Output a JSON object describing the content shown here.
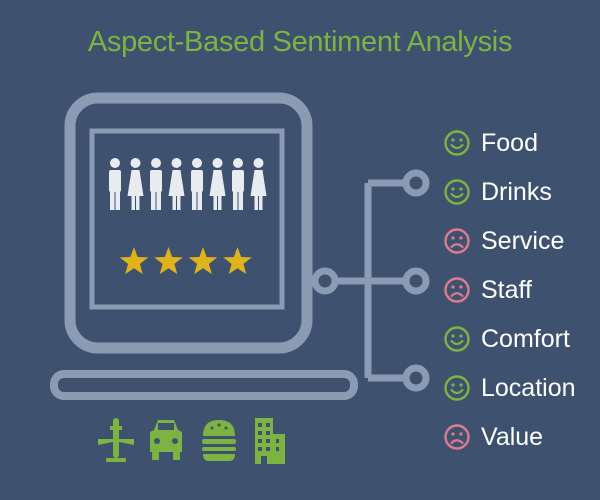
{
  "title": "Aspect-Based Sentiment Analysis",
  "colors": {
    "background": "#3e5270",
    "outline": "#8a9bb3",
    "accent_green": "#7cb342",
    "negative_pink": "#e07a8e",
    "star_gold": "#e0b31c",
    "person_white": "#e8ecf1"
  },
  "people_count": 8,
  "rating_stars": 4,
  "aspects": [
    {
      "label": "Food",
      "sentiment": "positive"
    },
    {
      "label": "Drinks",
      "sentiment": "positive"
    },
    {
      "label": "Service",
      "sentiment": "negative"
    },
    {
      "label": "Staff",
      "sentiment": "negative"
    },
    {
      "label": "Comfort",
      "sentiment": "positive"
    },
    {
      "label": "Location",
      "sentiment": "positive"
    },
    {
      "label": "Value",
      "sentiment": "negative"
    }
  ],
  "category_icons": [
    "airplane-icon",
    "car-icon",
    "burger-icon",
    "building-icon"
  ]
}
